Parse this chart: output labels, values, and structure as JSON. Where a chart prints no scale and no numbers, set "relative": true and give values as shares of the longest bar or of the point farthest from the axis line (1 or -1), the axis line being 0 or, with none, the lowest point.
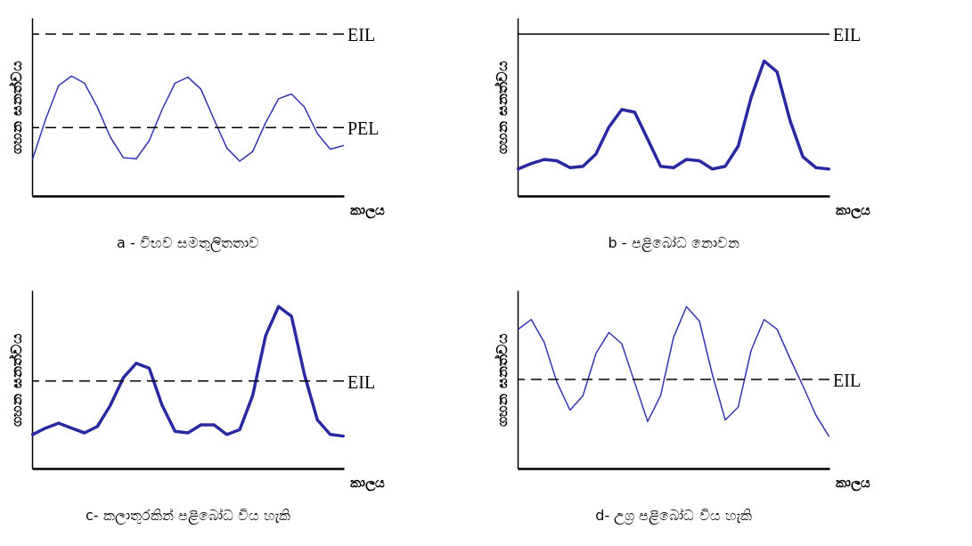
{
  "chart_data": [
    {
      "type": "line",
      "title": "a - විභව සමතුලිතතාව",
      "xlabel": "කාලය",
      "ylabel": "ගහන ඝනත්වය",
      "relative": true,
      "tick_labels": false,
      "categories": [
        null,
        null,
        null,
        null,
        null,
        null,
        null,
        null,
        null,
        null,
        null,
        null,
        null,
        null,
        null,
        null,
        null,
        null,
        null,
        null,
        null,
        null,
        null,
        null,
        null
      ],
      "series": [
        {
          "color": "#3535b0",
          "values": [
            0.31,
            0.64,
            0.92,
            1.0,
            0.94,
            0.74,
            0.49,
            0.32,
            0.31,
            0.46,
            0.72,
            0.94,
            0.99,
            0.89,
            0.64,
            0.4,
            0.29,
            0.37,
            0.61,
            0.81,
            0.85,
            0.74,
            0.52,
            0.39,
            0.42
          ]
        }
      ],
      "ref_lines": [
        {
          "axis": "y",
          "value": 1.35,
          "label": "EIL",
          "line_style": "dashed"
        },
        {
          "axis": "y",
          "value": 0.57,
          "label": "PEL",
          "line_style": "dashed"
        }
      ]
    },
    {
      "type": "line",
      "title": "b - පළිබෝධ නොවන",
      "xlabel": "කාලය",
      "ylabel": "ගහන ඝනත්වය",
      "relative": true,
      "tick_labels": false,
      "categories": [
        null,
        null,
        null,
        null,
        null,
        null,
        null,
        null,
        null,
        null,
        null,
        null,
        null,
        null,
        null,
        null,
        null,
        null,
        null,
        null,
        null,
        null,
        null,
        null,
        null
      ],
      "series": [
        {
          "color": "#2a2aa0",
          "values": [
            0.2,
            0.24,
            0.27,
            0.26,
            0.21,
            0.22,
            0.31,
            0.51,
            0.64,
            0.62,
            0.42,
            0.22,
            0.21,
            0.27,
            0.26,
            0.2,
            0.22,
            0.37,
            0.73,
            1.0,
            0.92,
            0.56,
            0.29,
            0.21,
            0.2
          ]
        }
      ],
      "ref_lines": [
        {
          "axis": "y",
          "value": 1.2,
          "label": "EIL",
          "line_style": "solid"
        }
      ]
    },
    {
      "type": "line",
      "title": "c- කලාතුරකින් පළිබෝධ විය හැකි",
      "xlabel": "කාලය",
      "ylabel": "ගහන ඝනත්වය",
      "relative": true,
      "tick_labels": false,
      "categories": [
        null,
        null,
        null,
        null,
        null,
        null,
        null,
        null,
        null,
        null,
        null,
        null,
        null,
        null,
        null,
        null,
        null,
        null,
        null,
        null,
        null,
        null,
        null,
        null,
        null
      ],
      "series": [
        {
          "color": "#2a2aa0",
          "values": [
            0.21,
            0.25,
            0.28,
            0.25,
            0.22,
            0.26,
            0.39,
            0.56,
            0.65,
            0.62,
            0.39,
            0.23,
            0.22,
            0.27,
            0.27,
            0.21,
            0.24,
            0.45,
            0.82,
            1.0,
            0.94,
            0.58,
            0.3,
            0.21,
            0.2
          ]
        }
      ],
      "ref_lines": [
        {
          "axis": "y",
          "value": 0.54,
          "label": "EIL",
          "line_style": "dashed"
        }
      ]
    },
    {
      "type": "line",
      "title": "d- උග්‍ර පළිබෝධ විය හැකි",
      "xlabel": "කාලය",
      "ylabel": "ගහන ඝනත්වය",
      "relative": true,
      "tick_labels": false,
      "categories": [
        null,
        null,
        null,
        null,
        null,
        null,
        null,
        null,
        null,
        null,
        null,
        null,
        null,
        null,
        null,
        null,
        null,
        null,
        null,
        null,
        null,
        null,
        null,
        null,
        null
      ],
      "series": [
        {
          "color": "#3535b0",
          "values": [
            0.86,
            0.92,
            0.78,
            0.53,
            0.36,
            0.45,
            0.71,
            0.84,
            0.77,
            0.53,
            0.29,
            0.45,
            0.81,
            1.0,
            0.91,
            0.58,
            0.3,
            0.38,
            0.73,
            0.92,
            0.86,
            0.68,
            0.51,
            0.33,
            0.2
          ]
        }
      ],
      "ref_lines": [
        {
          "axis": "y",
          "value": 0.55,
          "label": "EIL",
          "line_style": "dashed"
        }
      ]
    }
  ]
}
